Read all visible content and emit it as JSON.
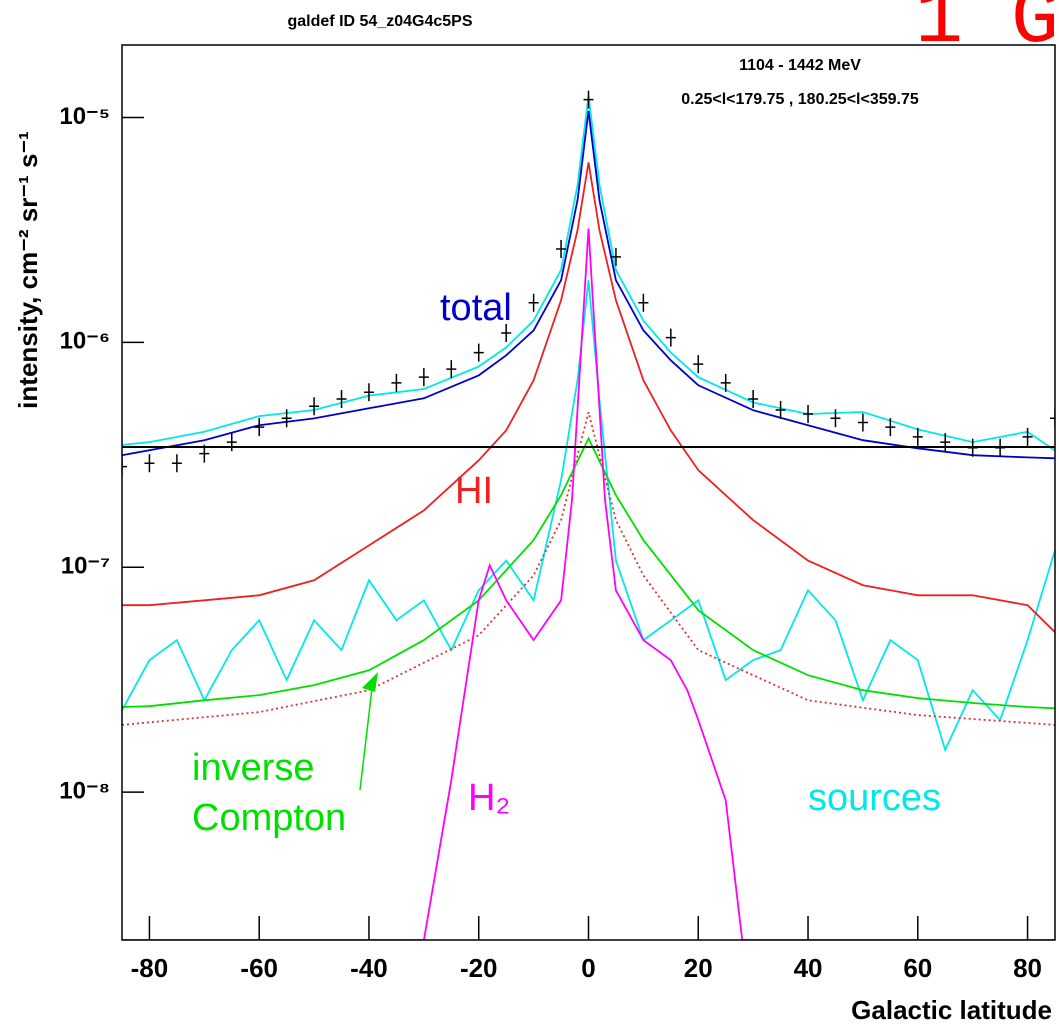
{
  "chart_data": {
    "type": "line",
    "title": "galdef ID 54_z04G4c5PS",
    "annotations": [
      "1104 -  1442 MeV",
      "0.25<l<179.75 , 180.25<l<359.75"
    ],
    "corner_text": "1 G",
    "x_label": "Galactic latitude",
    "y_label": "intensity, cm⁻² sr⁻¹ s⁻¹",
    "ylog": true,
    "xlim": [
      -85,
      85
    ],
    "ylim": [
      2.2e-09,
      2.1e-05
    ],
    "xticks": [
      -80,
      -60,
      -40,
      -20,
      0,
      20,
      40,
      60,
      80
    ],
    "yticks": [
      {
        "value": 1e-08,
        "label": "10⁻⁸"
      },
      {
        "value": 1e-07,
        "label": "10⁻⁷"
      },
      {
        "value": 1e-06,
        "label": "10⁻⁶"
      },
      {
        "value": 1e-05,
        "label": "10⁻⁵"
      }
    ],
    "series": [
      {
        "name": "sources",
        "color": "#00e8e8",
        "x": [
          -85,
          -80,
          -75,
          -70,
          -65,
          -60,
          -55,
          -50,
          -45,
          -40,
          -35,
          -30,
          -25,
          -20,
          -15,
          -10,
          -5,
          -2,
          0,
          2,
          5,
          10,
          15,
          20,
          25,
          30,
          35,
          40,
          45,
          50,
          55,
          60,
          65,
          70,
          75,
          80,
          85
        ],
        "values": [
          2.31e-08,
          3.86e-08,
          4.74e-08,
          2.56e-08,
          4.28e-08,
          5.81e-08,
          3.15e-08,
          5.81e-08,
          4.28e-08,
          8.75e-08,
          5.81e-08,
          7.13e-08,
          4.28e-08,
          7.9e-08,
          1.07e-07,
          7.13e-08,
          2.44e-07,
          6.78e-07,
          1.89e-06,
          5.52e-07,
          1.07e-07,
          4.74e-08,
          5.81e-08,
          7.13e-08,
          3.15e-08,
          3.86e-08,
          4.28e-08,
          7.9e-08,
          5.81e-08,
          2.56e-08,
          4.74e-08,
          3.86e-08,
          1.54e-08,
          2.84e-08,
          2.09e-08,
          4.74e-08,
          1.19e-07
        ]
      },
      {
        "color": "#e03030",
        "style": "dotted",
        "x": [
          -85,
          -60,
          -40,
          -20,
          -10,
          -5,
          0,
          5,
          10,
          20,
          40,
          60,
          85
        ],
        "values": [
          1.99e-08,
          2.27e-08,
          2.84e-08,
          4.98e-08,
          9.2e-08,
          1.62e-07,
          4.89e-07,
          1.62e-07,
          9.2e-08,
          4.28e-08,
          2.56e-08,
          2.2e-08,
          1.99e-08
        ]
      },
      {
        "name": "inverse Compton",
        "color": "#00e000",
        "x": [
          -85,
          -80,
          -70,
          -60,
          -50,
          -40,
          -30,
          -20,
          -10,
          -5,
          0,
          5,
          10,
          20,
          30,
          40,
          50,
          60,
          70,
          80,
          85
        ],
        "values": [
          2.39e-08,
          2.41e-08,
          2.56e-08,
          2.7e-08,
          2.99e-08,
          3.48e-08,
          4.74e-08,
          7.13e-08,
          1.32e-07,
          2.09e-07,
          3.74e-07,
          2.09e-07,
          1.32e-07,
          6.44e-08,
          4.28e-08,
          3.31e-08,
          2.84e-08,
          2.62e-08,
          2.49e-08,
          2.39e-08,
          2.36e-08
        ]
      },
      {
        "name": "H₂",
        "color": "#ff00ff",
        "x": [
          -85,
          -30,
          -25,
          -20,
          -18,
          -15,
          -10,
          -5,
          -3,
          0,
          3,
          5,
          10,
          15,
          18,
          20,
          25,
          28,
          85
        ],
        "values": [
          2.2e-09,
          2.2e-09,
          1.13e-08,
          7.13e-08,
          1.02e-07,
          7.13e-08,
          4.74e-08,
          7.13e-08,
          1.99e-07,
          3.21e-06,
          1.99e-07,
          7.9e-08,
          4.74e-08,
          3.86e-08,
          2.84e-08,
          2.09e-08,
          9.2e-09,
          2.2e-09,
          2.2e-09
        ]
      },
      {
        "name": "HI",
        "color": "#ee2020",
        "x": [
          -85,
          -80,
          -70,
          -60,
          -50,
          -40,
          -30,
          -20,
          -15,
          -10,
          -5,
          -2,
          0,
          2,
          5,
          10,
          15,
          20,
          30,
          40,
          50,
          60,
          70,
          80,
          85
        ],
        "values": [
          6.78e-08,
          6.78e-08,
          7.13e-08,
          7.5e-08,
          8.75e-08,
          1.25e-07,
          1.79e-07,
          2.99e-07,
          4.06e-07,
          6.78e-07,
          1.54e-06,
          3.15e-06,
          6.31e-06,
          3.15e-06,
          1.54e-06,
          6.78e-07,
          4.06e-07,
          2.7e-07,
          1.62e-07,
          1.07e-07,
          8.32e-08,
          7.5e-08,
          7.5e-08,
          6.78e-08,
          5.14e-08
        ]
      },
      {
        "color": "#00e8e8",
        "x": [
          -85,
          -80,
          -70,
          -60,
          -50,
          -40,
          -30,
          -20,
          -15,
          -10,
          -5,
          -2,
          0,
          2,
          5,
          10,
          15,
          20,
          30,
          40,
          50,
          60,
          70,
          80,
          85
        ],
        "values": [
          3.5e-07,
          3.6e-07,
          4e-07,
          4.7e-07,
          5e-07,
          5.8e-07,
          6.2e-07,
          7.8e-07,
          9.5e-07,
          1.25e-06,
          2.1e-06,
          5e-06,
          1.25e-05,
          5e-06,
          2.1e-06,
          1.25e-06,
          9e-07,
          7e-07,
          5.4e-07,
          4.8e-07,
          4.9e-07,
          4.1e-07,
          3.6e-07,
          4e-07,
          3.3e-07
        ]
      },
      {
        "name": "total",
        "color": "#0000cc",
        "x": [
          -85,
          -80,
          -70,
          -60,
          -50,
          -40,
          -30,
          -20,
          -15,
          -10,
          -5,
          -2,
          0,
          2,
          5,
          10,
          15,
          20,
          30,
          40,
          50,
          60,
          70,
          80,
          85
        ],
        "values": [
          3.15e-07,
          3.31e-07,
          3.67e-07,
          4.28e-07,
          4.59e-07,
          5.09e-07,
          5.64e-07,
          7.13e-07,
          8.76e-07,
          1.13e-06,
          1.89e-06,
          4.28e-06,
          1.07e-05,
          4.28e-06,
          1.89e-06,
          1.13e-06,
          8.32e-07,
          6.44e-07,
          4.99e-07,
          4.28e-07,
          3.67e-07,
          3.38e-07,
          3.15e-07,
          3.08e-07,
          3.05e-07
        ]
      },
      {
        "color": "#000000",
        "markers": "cross",
        "x": [
          -85,
          -80,
          -75,
          -70,
          -65,
          -60,
          -55,
          -50,
          -45,
          -40,
          -35,
          -30,
          -25,
          -20,
          -15,
          -10,
          -5,
          0,
          5,
          10,
          15,
          20,
          25,
          30,
          35,
          40,
          45,
          50,
          55,
          60,
          65,
          70,
          75,
          80,
          85
        ],
        "values": [
          2.8e-07,
          2.9e-07,
          2.9e-07,
          3.2e-07,
          3.6e-07,
          4.2e-07,
          4.6e-07,
          5.2e-07,
          5.6e-07,
          6e-07,
          6.6e-07,
          7e-07,
          7.6e-07,
          9e-07,
          1.1e-06,
          1.5e-06,
          2.6e-06,
          1.2e-05,
          2.4e-06,
          1.5e-06,
          1.05e-06,
          8e-07,
          6.6e-07,
          5.6e-07,
          5e-07,
          4.8e-07,
          4.6e-07,
          4.4e-07,
          4.2e-07,
          3.8e-07,
          3.6e-07,
          3.4e-07,
          3.4e-07,
          3.8e-07,
          4.6e-07
        ]
      }
    ]
  }
}
